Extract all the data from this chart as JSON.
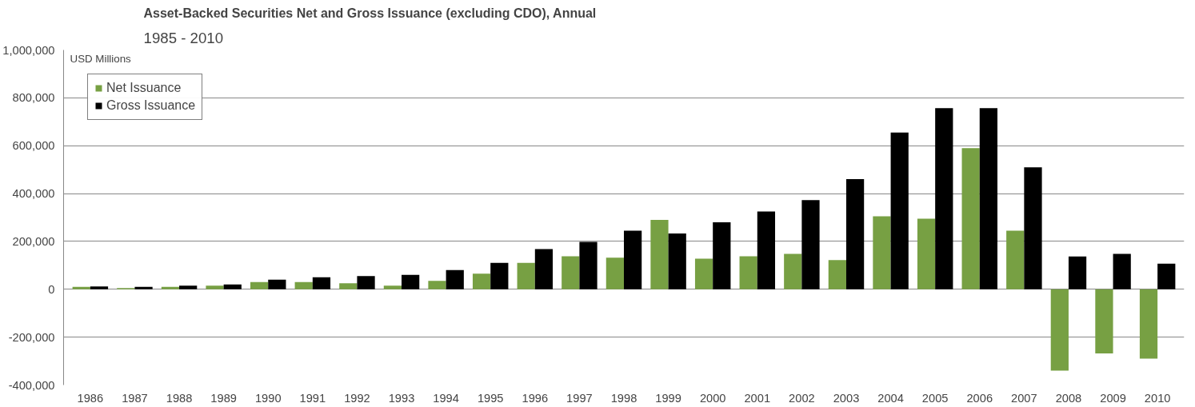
{
  "chart_data": {
    "type": "bar",
    "title": "Asset-Backed Securities Net and Gross Issuance (excluding CDO), Annual",
    "subtitle": "1985 - 2010",
    "ylabel": "USD Millions",
    "categories": [
      "1986",
      "1987",
      "1988",
      "1989",
      "1990",
      "1991",
      "1992",
      "1993",
      "1994",
      "1995",
      "1996",
      "1997",
      "1998",
      "1999",
      "2000",
      "2001",
      "2002",
      "2003",
      "2004",
      "2005",
      "2006",
      "2007",
      "2008",
      "2009",
      "2010"
    ],
    "series": [
      {
        "name": "Net Issuance",
        "color": "#77a043",
        "values": [
          10000,
          5000,
          10000,
          15000,
          30000,
          30000,
          25000,
          15000,
          35000,
          65000,
          110000,
          138000,
          132000,
          290000,
          128000,
          138000,
          148000,
          122000,
          305000,
          295000,
          590000,
          245000,
          -340000,
          -268000,
          -290000
        ]
      },
      {
        "name": "Gross Issuance",
        "color": "#000000",
        "values": [
          12000,
          10000,
          15000,
          20000,
          40000,
          50000,
          55000,
          60000,
          80000,
          110000,
          168000,
          198000,
          245000,
          233000,
          280000,
          325000,
          373000,
          460000,
          655000,
          757000,
          757000,
          510000,
          137000,
          148000,
          107000
        ]
      }
    ],
    "ylim": [
      -400000,
      1000000
    ],
    "yticks": [
      {
        "value": -400000,
        "label": "-400,000"
      },
      {
        "value": -200000,
        "label": "-200,000"
      },
      0,
      {
        "value": 200000,
        "label": "200,000"
      },
      {
        "value": 400000,
        "label": "400,000"
      },
      {
        "value": 600000,
        "label": "600,000"
      },
      {
        "value": 800000,
        "label": "800,000"
      },
      {
        "value": 1000000,
        "label": "1,000,000"
      }
    ],
    "grid": "y",
    "legend": "top left"
  }
}
